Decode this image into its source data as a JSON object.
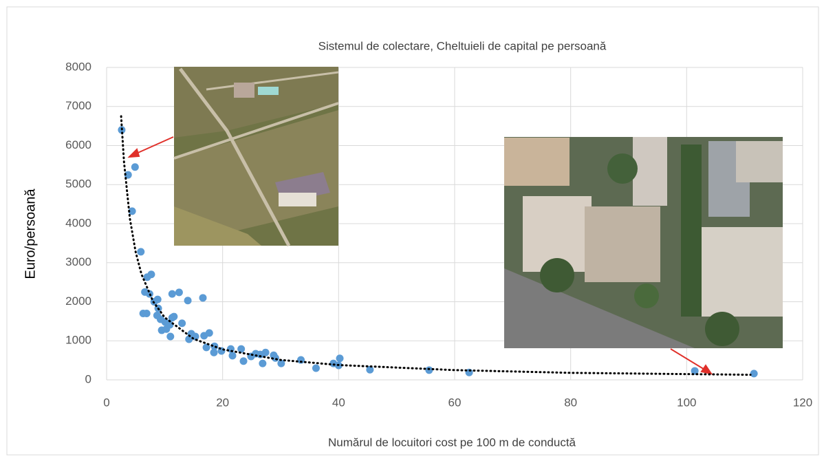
{
  "chart_data": {
    "type": "scatter",
    "title": "Sistemul de colectare, Cheltuieli de capital pe persoană",
    "xlabel": "Numărul de locuitori cost pe 100 m  de conductă",
    "ylabel": "Euro/persoană",
    "color": "#5b9bd5",
    "x": [
      2.6,
      3.7,
      4.9,
      4.4,
      5.9,
      7.0,
      7.7,
      6.6,
      7.4,
      6.3,
      6.9,
      8.2,
      8.8,
      8.9,
      8.7,
      9.3,
      9.5,
      10.3,
      10.1,
      10.9,
      11.3,
      11.6,
      11.0,
      11.3,
      12.5,
      13.0,
      14.0,
      14.2,
      14.6,
      15.3,
      16.6,
      16.8,
      17.7,
      17.2,
      18.6,
      18.5,
      19.8,
      21.4,
      21.7,
      23.2,
      23.6,
      24.9,
      25.7,
      26.5,
      26.9,
      27.4,
      28.8,
      29.1,
      30.1,
      33.5,
      36.1,
      39.1,
      40.0,
      40.2,
      45.4,
      55.6,
      62.5,
      101.4,
      111.6
    ],
    "values": [
      6400,
      5250,
      5450,
      4320,
      3280,
      2630,
      2700,
      2250,
      2200,
      1700,
      1700,
      2000,
      2060,
      1830,
      1650,
      1550,
      1270,
      1300,
      1480,
      1410,
      1590,
      1620,
      1110,
      2200,
      2240,
      1450,
      2030,
      1040,
      1180,
      1110,
      2100,
      1130,
      1200,
      830,
      860,
      700,
      740,
      790,
      620,
      790,
      480,
      600,
      670,
      650,
      420,
      700,
      630,
      560,
      420,
      510,
      300,
      420,
      370,
      550,
      260,
      250,
      190,
      230,
      160
    ],
    "trendline": {
      "x": [
        2.5,
        3,
        4,
        5,
        6,
        8,
        10,
        15,
        20,
        30,
        40,
        60,
        80,
        111
      ],
      "values": [
        6750,
        5580,
        4140,
        3280,
        2710,
        2010,
        1600,
        1050,
        780,
        510,
        380,
        250,
        180,
        130
      ]
    },
    "xlim": [
      0,
      120
    ],
    "xticks": [
      0,
      20,
      40,
      60,
      80,
      100,
      120
    ],
    "ylim": [
      0,
      8000
    ],
    "yticks": [
      0,
      1000,
      2000,
      3000,
      4000,
      5000,
      6000,
      7000,
      8000
    ],
    "grid": true
  }
}
